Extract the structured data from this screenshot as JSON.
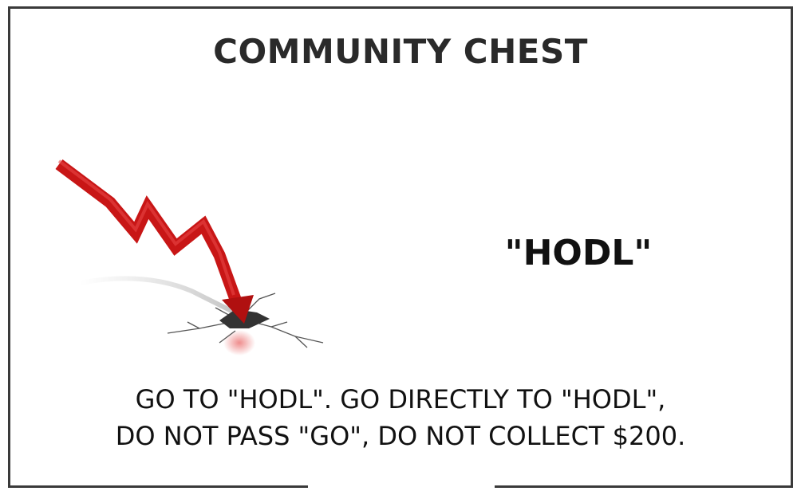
{
  "card": {
    "title": "COMMUNITY CHEST",
    "headline": "\"HODL\"",
    "instruction_line1": "GO TO \"HODL\". GO DIRECTLY TO \"HODL\",",
    "instruction_line2": "DO NOT PASS \"GO\", DO NOT COLLECT $200."
  },
  "illustration": {
    "icon": "crashing-red-arrow-icon",
    "arrow_color": "#d41a1a"
  }
}
